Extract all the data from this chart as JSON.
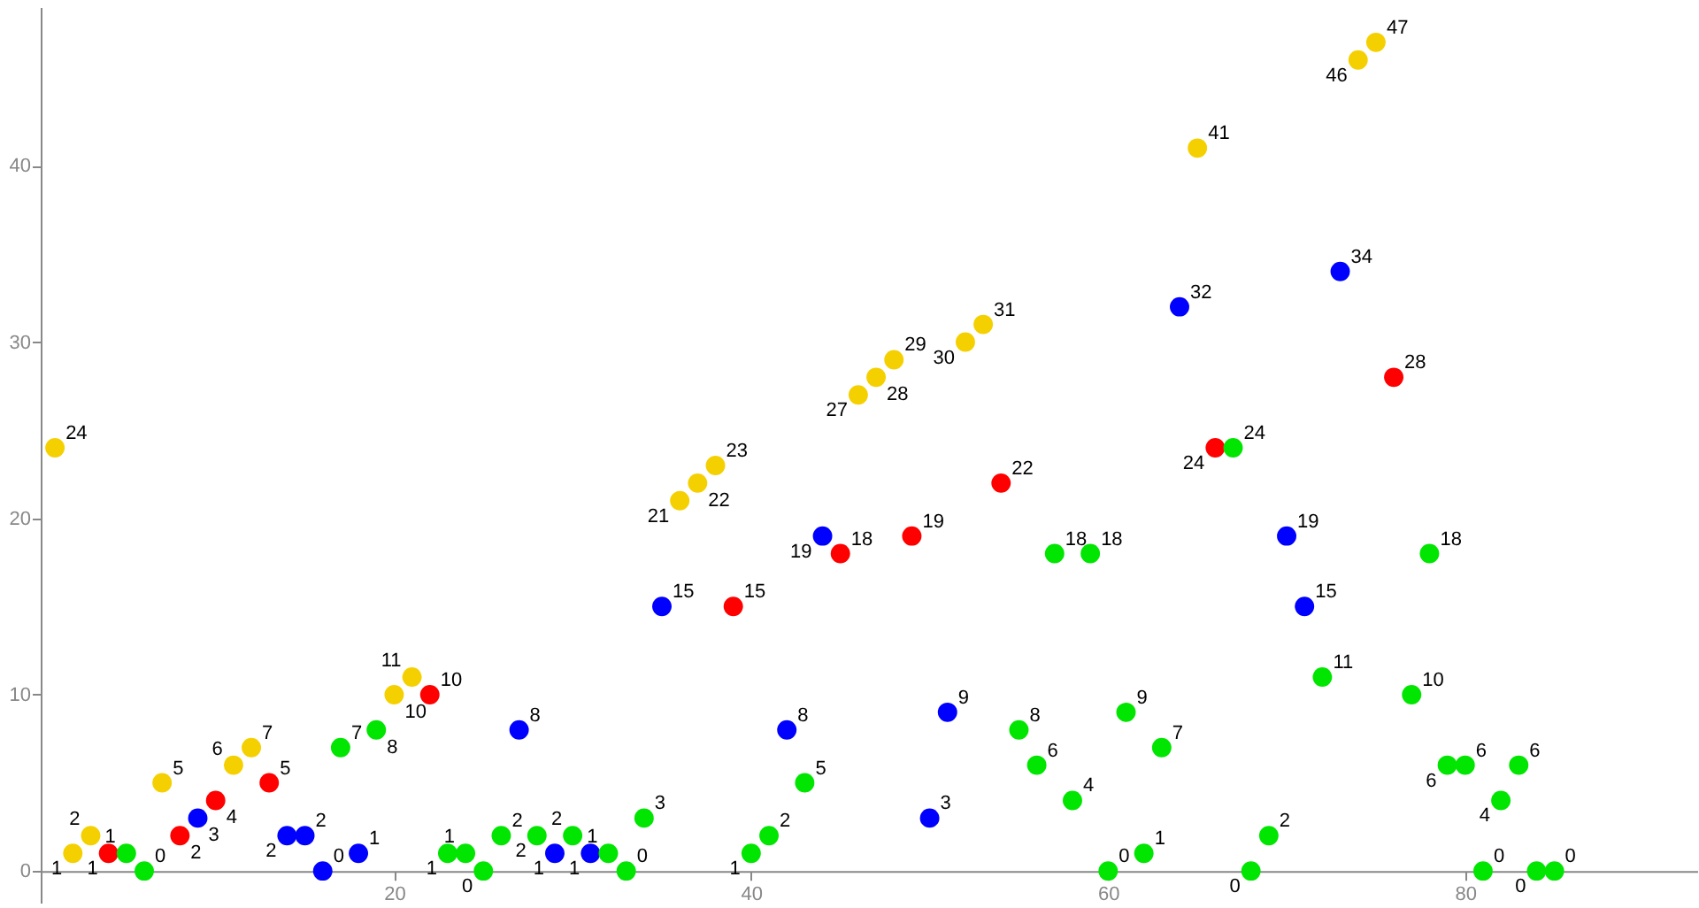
{
  "chart_data": {
    "type": "scatter",
    "marker": "circle",
    "data_labels": true,
    "xlim": [
      0.2,
      93
    ],
    "ylim": [
      -1.8,
      49
    ],
    "xticks": [
      20,
      40,
      60,
      80
    ],
    "yticks": [
      0,
      10,
      20,
      30,
      40
    ],
    "series": [
      {
        "color": "#f5d000",
        "x": [
          1,
          2,
          3,
          7,
          11,
          12,
          20,
          21,
          36,
          37,
          38,
          46,
          47,
          48,
          52,
          53,
          65,
          74,
          75
        ],
        "values": [
          24,
          1,
          2,
          5,
          6,
          7,
          10,
          11,
          21,
          22,
          23,
          27,
          28,
          29,
          30,
          31,
          41,
          46,
          47
        ]
      },
      {
        "color": "#ff0000",
        "x": [
          4,
          8,
          10,
          13,
          22,
          39,
          45,
          49,
          54,
          66,
          76
        ],
        "values": [
          1,
          2,
          4,
          5,
          10,
          15,
          18,
          19,
          22,
          24,
          28
        ]
      },
      {
        "color": "#0000ff",
        "x": [
          9,
          14,
          15,
          16,
          18,
          27,
          29,
          31,
          35,
          42,
          44,
          50,
          51,
          64,
          70,
          71,
          73
        ],
        "values": [
          3,
          2,
          2,
          0,
          1,
          8,
          1,
          1,
          15,
          8,
          19,
          3,
          9,
          32,
          19,
          15,
          34
        ]
      },
      {
        "color": "#00e600",
        "x": [
          5,
          6,
          17,
          19,
          23,
          24,
          25,
          26,
          28,
          30,
          32,
          33,
          34,
          40,
          41,
          43,
          55,
          56,
          57,
          58,
          59,
          60,
          61,
          62,
          63,
          67,
          68,
          69,
          72,
          77,
          78,
          79,
          80,
          81,
          82,
          83,
          84,
          85
        ],
        "values": [
          1,
          0,
          7,
          8,
          1,
          1,
          0,
          2,
          2,
          2,
          1,
          0,
          3,
          1,
          2,
          5,
          8,
          6,
          18,
          4,
          18,
          0,
          9,
          1,
          7,
          24,
          0,
          2,
          11,
          10,
          18,
          6,
          6,
          0,
          4,
          6,
          0,
          0
        ]
      }
    ]
  }
}
